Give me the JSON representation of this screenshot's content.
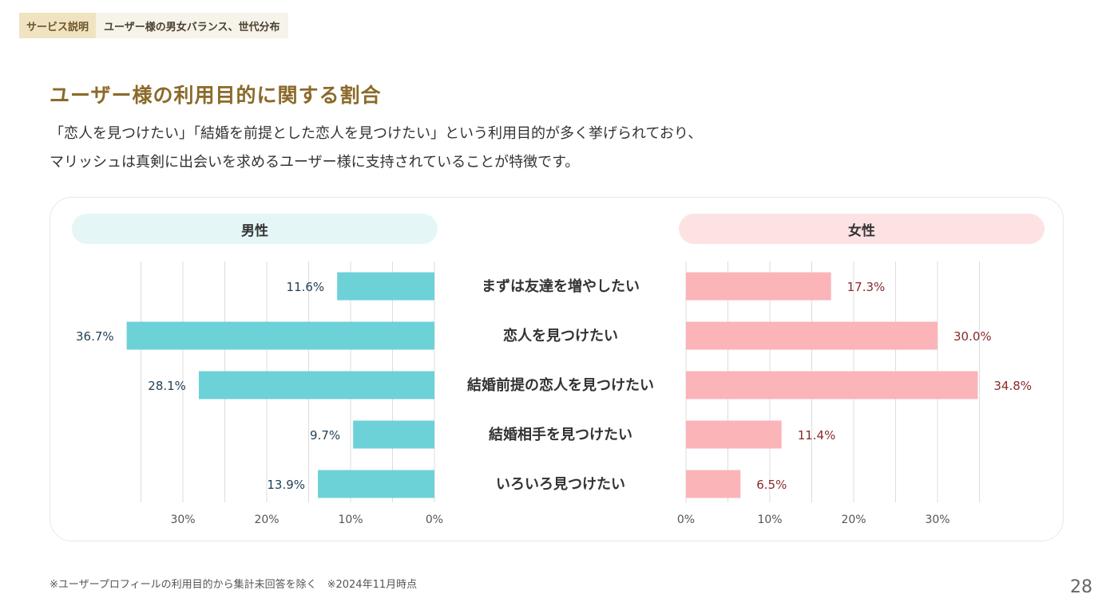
{
  "breadcrumb": {
    "section": "サービス説明",
    "topic": "ユーザー様の男女バランス、世代分布"
  },
  "title": "ユーザー様の利用目的に関する割合",
  "description": [
    "「恋人を見つけたい」「結婚を前提とした恋人を見つけたい」という利用目的が多く挙げられており、",
    "マリッシュは真剣に出会いを求めるユーザー様に支持されていることが特徴です。"
  ],
  "colors": {
    "male_bar": "#6dd1d8",
    "female_bar": "#fbb4b8",
    "male_value": "#1f3f55",
    "female_value": "#8a2a2a",
    "grid": "#dcdcdc",
    "title": "#8b6a2a"
  },
  "chart_data": {
    "type": "bar",
    "orientation": "horizontal-butterfly",
    "categories": [
      "まずは友達を増やしたい",
      "恋人を見つけたい",
      "結婚前提の恋人を見つけたい",
      "結婚相手を見つけたい",
      "いろいろ見つけたい"
    ],
    "series": [
      {
        "name": "男性",
        "values": [
          11.6,
          36.7,
          28.1,
          9.7,
          13.9
        ],
        "labels": [
          "11.6%",
          "36.7%",
          "28.1%",
          "9.7%",
          "13.9%"
        ]
      },
      {
        "name": "女性",
        "values": [
          17.3,
          30.0,
          34.8,
          11.4,
          6.5
        ],
        "labels": [
          "17.3%",
          "30.0%",
          "34.8%",
          "11.4%",
          "6.5%"
        ]
      }
    ],
    "xlim": [
      0,
      35
    ],
    "male_ticks": [
      "30%",
      "20%",
      "10%",
      "0%"
    ],
    "female_ticks": [
      "0%",
      "10%",
      "20%",
      "30%"
    ],
    "grid": true
  },
  "footnote": "※ユーザープロフィールの利用目的から集計未回答を除く　※2024年11月時点",
  "page_number": "28"
}
